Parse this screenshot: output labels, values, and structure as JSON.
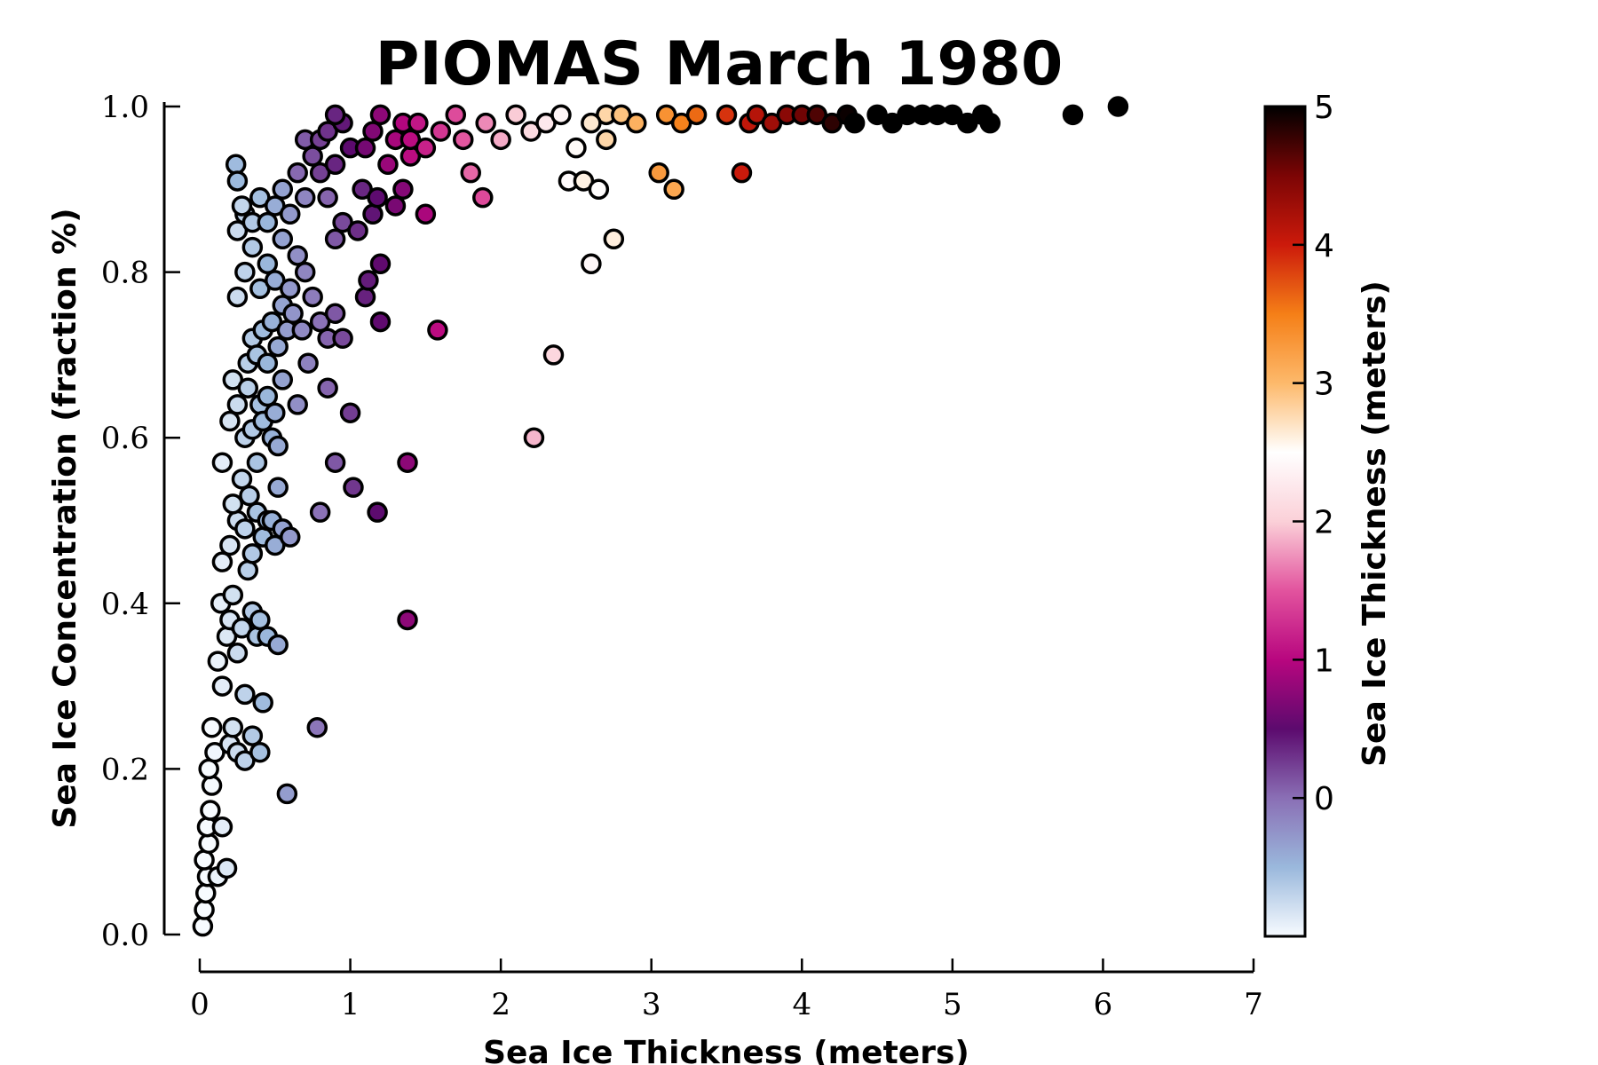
{
  "chart_data": {
    "type": "scatter",
    "title": "PIOMAS March 1980",
    "xlabel": "Sea Ice Thickness (meters)",
    "ylabel": "Sea Ice Concentration (fraction %)",
    "xlim": [
      0,
      7
    ],
    "ylim": [
      0,
      1.0
    ],
    "xticks": [
      "0",
      "1",
      "2",
      "3",
      "4",
      "5",
      "6",
      "7"
    ],
    "yticks": [
      "0.0",
      "0.2",
      "0.4",
      "0.6",
      "0.8",
      "1.0"
    ],
    "grid": false,
    "colorbar": {
      "label": "Sea Ice Thickness (meters)",
      "range": [
        -1,
        5
      ],
      "ticks": [
        "0",
        "1",
        "2",
        "3",
        "4",
        "5"
      ],
      "colormap": [
        "#f7fbff",
        "#9ab8dc",
        "#8a6fb5",
        "#5c0a6e",
        "#b8067f",
        "#e2539e",
        "#fbd0d8",
        "#ffffff",
        "#fdb96b",
        "#f57f17",
        "#cc1a0b",
        "#7c0505",
        "#000000"
      ]
    },
    "series": [
      {
        "color_by": "thickness",
        "points": [
          [
            0.02,
            0.01
          ],
          [
            0.03,
            0.03
          ],
          [
            0.04,
            0.05
          ],
          [
            0.05,
            0.07
          ],
          [
            0.03,
            0.09
          ],
          [
            0.06,
            0.11
          ],
          [
            0.05,
            0.13
          ],
          [
            0.07,
            0.15
          ],
          [
            0.08,
            0.18
          ],
          [
            0.06,
            0.2
          ],
          [
            0.1,
            0.22
          ],
          [
            0.08,
            0.25
          ],
          [
            0.12,
            0.07
          ],
          [
            0.15,
            0.13
          ],
          [
            0.18,
            0.08
          ],
          [
            0.2,
            0.23
          ],
          [
            0.22,
            0.25
          ],
          [
            0.25,
            0.22
          ],
          [
            0.3,
            0.21
          ],
          [
            0.35,
            0.24
          ],
          [
            0.4,
            0.22
          ],
          [
            0.42,
            0.28
          ],
          [
            0.12,
            0.33
          ],
          [
            0.15,
            0.3
          ],
          [
            0.18,
            0.36
          ],
          [
            0.2,
            0.38
          ],
          [
            0.14,
            0.4
          ],
          [
            0.22,
            0.41
          ],
          [
            0.25,
            0.34
          ],
          [
            0.28,
            0.37
          ],
          [
            0.3,
            0.29
          ],
          [
            0.32,
            0.44
          ],
          [
            0.35,
            0.39
          ],
          [
            0.38,
            0.36
          ],
          [
            0.4,
            0.38
          ],
          [
            0.45,
            0.36
          ],
          [
            0.52,
            0.35
          ],
          [
            0.15,
            0.45
          ],
          [
            0.2,
            0.47
          ],
          [
            0.25,
            0.5
          ],
          [
            0.22,
            0.52
          ],
          [
            0.28,
            0.55
          ],
          [
            0.3,
            0.49
          ],
          [
            0.33,
            0.53
          ],
          [
            0.35,
            0.46
          ],
          [
            0.38,
            0.51
          ],
          [
            0.42,
            0.48
          ],
          [
            0.45,
            0.5
          ],
          [
            0.5,
            0.47
          ],
          [
            0.52,
            0.54
          ],
          [
            0.48,
            0.5
          ],
          [
            0.55,
            0.49
          ],
          [
            0.6,
            0.48
          ],
          [
            0.15,
            0.57
          ],
          [
            0.2,
            0.62
          ],
          [
            0.22,
            0.67
          ],
          [
            0.25,
            0.64
          ],
          [
            0.3,
            0.6
          ],
          [
            0.32,
            0.66
          ],
          [
            0.35,
            0.61
          ],
          [
            0.38,
            0.57
          ],
          [
            0.4,
            0.64
          ],
          [
            0.42,
            0.62
          ],
          [
            0.45,
            0.65
          ],
          [
            0.48,
            0.6
          ],
          [
            0.5,
            0.63
          ],
          [
            0.52,
            0.59
          ],
          [
            0.55,
            0.67
          ],
          [
            0.32,
            0.69
          ],
          [
            0.35,
            0.72
          ],
          [
            0.38,
            0.7
          ],
          [
            0.42,
            0.73
          ],
          [
            0.45,
            0.69
          ],
          [
            0.48,
            0.74
          ],
          [
            0.52,
            0.71
          ],
          [
            0.55,
            0.76
          ],
          [
            0.58,
            0.73
          ],
          [
            0.62,
            0.75
          ],
          [
            0.65,
            0.64
          ],
          [
            0.68,
            0.73
          ],
          [
            0.72,
            0.69
          ],
          [
            0.25,
            0.77
          ],
          [
            0.3,
            0.8
          ],
          [
            0.35,
            0.83
          ],
          [
            0.4,
            0.78
          ],
          [
            0.45,
            0.81
          ],
          [
            0.5,
            0.79
          ],
          [
            0.55,
            0.84
          ],
          [
            0.6,
            0.78
          ],
          [
            0.65,
            0.82
          ],
          [
            0.7,
            0.8
          ],
          [
            0.25,
            0.85
          ],
          [
            0.3,
            0.87
          ],
          [
            0.35,
            0.86
          ],
          [
            0.4,
            0.89
          ],
          [
            0.45,
            0.86
          ],
          [
            0.5,
            0.88
          ],
          [
            0.55,
            0.9
          ],
          [
            0.6,
            0.87
          ],
          [
            0.65,
            0.92
          ],
          [
            0.7,
            0.89
          ],
          [
            0.24,
            0.93
          ],
          [
            0.25,
            0.91
          ],
          [
            0.28,
            0.88
          ],
          [
            0.58,
            0.17
          ],
          [
            0.78,
            0.25
          ],
          [
            0.8,
            0.51
          ],
          [
            0.9,
            0.57
          ],
          [
            0.85,
            0.66
          ],
          [
            0.8,
            0.74
          ],
          [
            0.75,
            0.77
          ],
          [
            0.85,
            0.72
          ],
          [
            0.9,
            0.75
          ],
          [
            0.95,
            0.72
          ],
          [
            0.9,
            0.84
          ],
          [
            0.95,
            0.86
          ],
          [
            0.85,
            0.89
          ],
          [
            0.8,
            0.92
          ],
          [
            0.75,
            0.94
          ],
          [
            0.7,
            0.96
          ],
          [
            0.8,
            0.96
          ],
          [
            0.9,
            0.93
          ],
          [
            0.85,
            0.97
          ],
          [
            0.95,
            0.98
          ],
          [
            1.0,
            0.95
          ],
          [
            0.9,
            0.99
          ],
          [
            1.0,
            0.63
          ],
          [
            1.02,
            0.54
          ],
          [
            1.05,
            0.85
          ],
          [
            1.08,
            0.9
          ],
          [
            1.1,
            0.77
          ],
          [
            1.12,
            0.79
          ],
          [
            1.15,
            0.87
          ],
          [
            1.18,
            0.89
          ],
          [
            1.2,
            0.81
          ],
          [
            1.18,
            0.51
          ],
          [
            1.2,
            0.74
          ],
          [
            1.1,
            0.95
          ],
          [
            1.15,
            0.97
          ],
          [
            1.2,
            0.99
          ],
          [
            1.25,
            0.93
          ],
          [
            1.3,
            0.96
          ],
          [
            1.35,
            0.98
          ],
          [
            1.3,
            0.88
          ],
          [
            1.35,
            0.9
          ],
          [
            1.4,
            0.94
          ],
          [
            1.4,
            0.96
          ],
          [
            1.38,
            0.57
          ],
          [
            1.38,
            0.38
          ],
          [
            1.5,
            0.87
          ],
          [
            1.45,
            0.98
          ],
          [
            1.5,
            0.95
          ],
          [
            1.6,
            0.97
          ],
          [
            1.58,
            0.73
          ],
          [
            1.7,
            0.99
          ],
          [
            1.75,
            0.96
          ],
          [
            1.8,
            0.92
          ],
          [
            1.88,
            0.89
          ],
          [
            1.9,
            0.98
          ],
          [
            2.0,
            0.96
          ],
          [
            2.1,
            0.99
          ],
          [
            2.2,
            0.97
          ],
          [
            2.22,
            0.6
          ],
          [
            2.35,
            0.7
          ],
          [
            2.3,
            0.98
          ],
          [
            2.4,
            0.99
          ],
          [
            2.45,
            0.91
          ],
          [
            2.5,
            0.95
          ],
          [
            2.55,
            0.91
          ],
          [
            2.6,
            0.81
          ],
          [
            2.65,
            0.9
          ],
          [
            2.7,
            0.99
          ],
          [
            2.75,
            0.84
          ],
          [
            2.6,
            0.98
          ],
          [
            2.7,
            0.96
          ],
          [
            2.8,
            0.99
          ],
          [
            2.9,
            0.98
          ],
          [
            3.05,
            0.92
          ],
          [
            3.1,
            0.99
          ],
          [
            3.15,
            0.9
          ],
          [
            3.2,
            0.98
          ],
          [
            3.3,
            0.99
          ],
          [
            3.5,
            0.99
          ],
          [
            3.6,
            0.92
          ],
          [
            3.65,
            0.98
          ],
          [
            3.7,
            0.99
          ],
          [
            3.8,
            0.98
          ],
          [
            3.9,
            0.99
          ],
          [
            4.0,
            0.99
          ],
          [
            4.1,
            0.99
          ],
          [
            4.2,
            0.98
          ],
          [
            4.3,
            0.99
          ],
          [
            4.35,
            0.98
          ],
          [
            4.5,
            0.99
          ],
          [
            4.6,
            0.98
          ],
          [
            4.7,
            0.99
          ],
          [
            4.8,
            0.99
          ],
          [
            4.9,
            0.99
          ],
          [
            5.0,
            0.99
          ],
          [
            5.1,
            0.98
          ],
          [
            5.2,
            0.99
          ],
          [
            5.25,
            0.98
          ],
          [
            5.8,
            0.99
          ],
          [
            6.1,
            1.0
          ]
        ]
      }
    ]
  }
}
